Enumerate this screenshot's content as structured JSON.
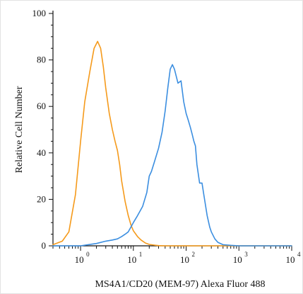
{
  "chart_data": {
    "type": "line",
    "title": "",
    "xlabel": "MS4A1/CD20 (MEM-97) Alexa Fluor 488",
    "ylabel": "Relative Cell Number",
    "x_scale": "log",
    "xlim": [
      0.3,
      10000
    ],
    "ylim": [
      0,
      100
    ],
    "x_tick_labels": [
      {
        "value": 1,
        "base": "10",
        "exp": "0"
      },
      {
        "value": 10,
        "base": "10",
        "exp": "1"
      },
      {
        "value": 100,
        "base": "10",
        "exp": "2"
      },
      {
        "value": 1000,
        "base": "10",
        "exp": "3"
      },
      {
        "value": 10000,
        "base": "10",
        "exp": "4"
      }
    ],
    "y_ticks": [
      0,
      20,
      40,
      60,
      80,
      100
    ],
    "grid": false,
    "legend": "none",
    "series": [
      {
        "color": "#f59a1b",
        "x": [
          0.3,
          0.45,
          0.6,
          0.8,
          1.0,
          1.2,
          1.5,
          1.8,
          2.1,
          2.4,
          2.7,
          3.0,
          3.5,
          4.0,
          4.5,
          5.0,
          5.5,
          6.0,
          7.0,
          8.0,
          9.0,
          10,
          12,
          14,
          17,
          20,
          25,
          30,
          40,
          60,
          100,
          10000
        ],
        "y": [
          0.5,
          2,
          6,
          22,
          45,
          62,
          75,
          85,
          88,
          85,
          77,
          68,
          57,
          50,
          45,
          41,
          35,
          28,
          19,
          13,
          9,
          6.5,
          4,
          2.5,
          1.2,
          0.6,
          0.3,
          0.1,
          0,
          0,
          0,
          0
        ]
      },
      {
        "color": "#3b8ee0",
        "x": [
          0.3,
          1.0,
          2,
          3,
          4,
          5,
          6,
          7,
          8,
          10,
          12,
          15,
          18,
          20,
          22,
          25,
          30,
          35,
          40,
          45,
          50,
          55,
          60,
          70,
          80,
          90,
          100,
          110,
          120,
          130,
          140,
          150,
          160,
          180,
          200,
          220,
          250,
          280,
          300,
          350,
          400,
          500,
          700,
          1000,
          10000
        ],
        "y": [
          0,
          0,
          1,
          2,
          2.5,
          3,
          4,
          5,
          6,
          10,
          13,
          17,
          23,
          30,
          32,
          36,
          42,
          49,
          58,
          68,
          76,
          78,
          76,
          70,
          71,
          62,
          57,
          54,
          51,
          48,
          45,
          43,
          35,
          27,
          27,
          21,
          13,
          8,
          6,
          3,
          1.5,
          0.5,
          0.2,
          0,
          0
        ]
      }
    ]
  }
}
